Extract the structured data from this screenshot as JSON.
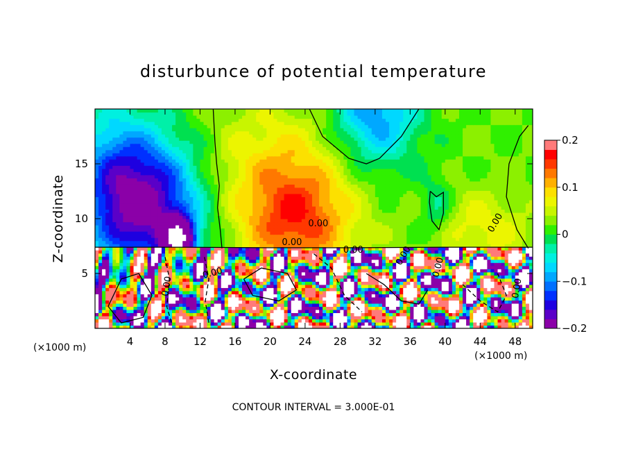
{
  "chart_data": {
    "type": "heatmap",
    "title": "disturbunce of potential temperature",
    "xlabel": "X-coordinate",
    "ylabel": "Z-coordinate",
    "x_units": "(×1000 m)",
    "y_units": "(×1000 m)",
    "xlim": [
      0,
      50
    ],
    "ylim": [
      0,
      20
    ],
    "x_ticks": [
      4,
      8,
      12,
      16,
      20,
      24,
      28,
      32,
      36,
      40,
      44,
      48
    ],
    "x_tick_labels": [
      "4",
      "8",
      "12",
      "16",
      "20",
      "24",
      "28",
      "32",
      "36",
      "40",
      "44",
      "48"
    ],
    "y_ticks": [
      5,
      10,
      15
    ],
    "y_tick_labels": [
      "5",
      "10",
      "15"
    ],
    "colorbar": {
      "range": [
        -0.2,
        0.2
      ],
      "ticks": [
        -0.2,
        -0.1,
        0,
        0.1,
        0.2
      ],
      "tick_labels": [
        "−0.2",
        "−0.1",
        "0",
        "0.1",
        "0.2"
      ],
      "levels": 20,
      "colors": [
        "#8b00a8",
        "#5a00c8",
        "#1e00e0",
        "#0030ff",
        "#0070ff",
        "#00a8ff",
        "#00d8ff",
        "#00f0e0",
        "#00f0a8",
        "#00e050",
        "#30f000",
        "#8cf000",
        "#c8f500",
        "#ecf500",
        "#fce000",
        "#ffb000",
        "#ff7800",
        "#ff3800",
        "#ff0000",
        "#ff7a7a"
      ]
    },
    "contour_labels": [
      "0.00",
      "0.00",
      "0.00",
      "0.00",
      "0.00",
      "0.00",
      "0.00",
      "0.00",
      "0.00"
    ],
    "contour_interval": "CONTOUR INTERVAL = 3.000E-01",
    "description_fields": {
      "upper_layer": "smooth field above z≈7.3 km: negative (blue/purple) near x=2–12, positive (orange) near x=18–28, slight negative (cyan) near x=26–38 top",
      "lower_layer": "turbulent field below z≈7.3 km with strong mixing, many saturated values"
    }
  }
}
